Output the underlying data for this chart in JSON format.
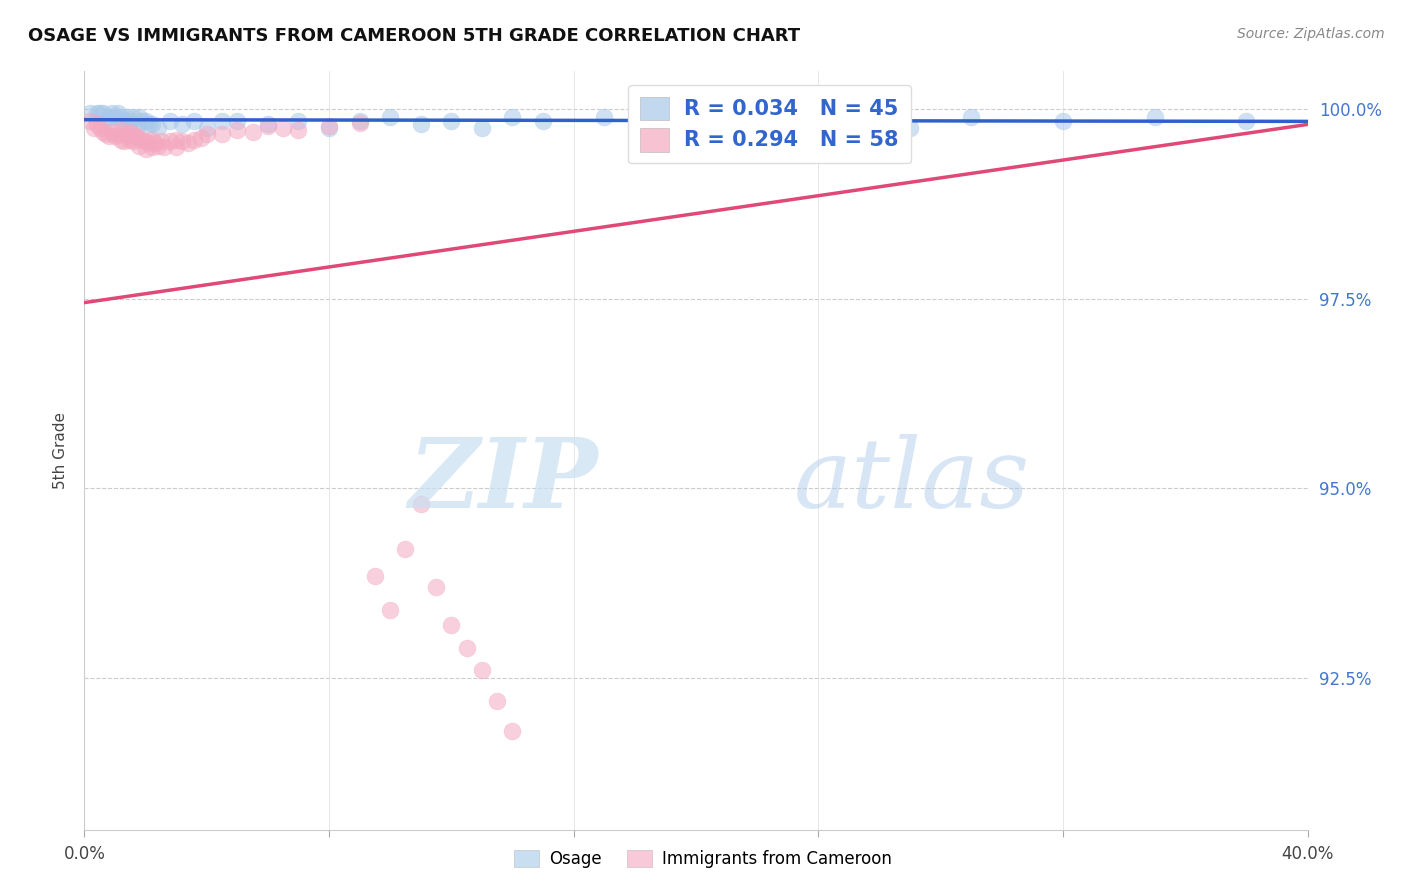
{
  "title": "OSAGE VS IMMIGRANTS FROM CAMEROON 5TH GRADE CORRELATION CHART",
  "source": "Source: ZipAtlas.com",
  "ylabel": "5th Grade",
  "xlim": [
    0.0,
    0.4
  ],
  "ylim": [
    0.905,
    1.005
  ],
  "ytick_labels": [
    "100.0%",
    "97.5%",
    "95.0%",
    "92.5%"
  ],
  "ytick_values": [
    1.0,
    0.975,
    0.95,
    0.925
  ],
  "xtick_values": [
    0.0,
    0.08,
    0.16,
    0.24,
    0.32,
    0.4
  ],
  "xtick_labels": [
    "0.0%",
    "",
    "",
    "",
    "",
    "40.0%"
  ],
  "blue_color": "#a8c8e8",
  "pink_color": "#f4a8c0",
  "trendline_blue_color": "#3060cc",
  "trendline_pink_color": "#e04878",
  "legend_R_blue": "R = 0.034",
  "legend_N_blue": "N = 45",
  "legend_R_pink": "R = 0.294",
  "legend_N_pink": "N = 58",
  "legend_text_color": "#3366cc",
  "watermark_zip_color": "#c8dff0",
  "watermark_atlas_color": "#b0ccec",
  "osage_points": [
    [
      0.002,
      0.9995
    ],
    [
      0.004,
      0.9995
    ],
    [
      0.005,
      0.9995
    ],
    [
      0.006,
      0.9995
    ],
    [
      0.007,
      0.9985
    ],
    [
      0.008,
      0.999
    ],
    [
      0.009,
      0.9995
    ],
    [
      0.01,
      0.999
    ],
    [
      0.011,
      0.9995
    ],
    [
      0.012,
      0.999
    ],
    [
      0.013,
      0.9985
    ],
    [
      0.014,
      0.999
    ],
    [
      0.015,
      0.9985
    ],
    [
      0.016,
      0.999
    ],
    [
      0.017,
      0.9975
    ],
    [
      0.018,
      0.999
    ],
    [
      0.019,
      0.9985
    ],
    [
      0.02,
      0.9985
    ],
    [
      0.021,
      0.998
    ],
    [
      0.022,
      0.998
    ],
    [
      0.024,
      0.9975
    ],
    [
      0.028,
      0.9985
    ],
    [
      0.032,
      0.998
    ],
    [
      0.036,
      0.9985
    ],
    [
      0.04,
      0.9975
    ],
    [
      0.045,
      0.9985
    ],
    [
      0.05,
      0.9985
    ],
    [
      0.06,
      0.998
    ],
    [
      0.07,
      0.9985
    ],
    [
      0.08,
      0.9975
    ],
    [
      0.09,
      0.9985
    ],
    [
      0.1,
      0.999
    ],
    [
      0.11,
      0.998
    ],
    [
      0.12,
      0.9985
    ],
    [
      0.13,
      0.9975
    ],
    [
      0.14,
      0.999
    ],
    [
      0.15,
      0.9985
    ],
    [
      0.17,
      0.999
    ],
    [
      0.2,
      0.9985
    ],
    [
      0.23,
      0.999
    ],
    [
      0.27,
      0.9975
    ],
    [
      0.29,
      0.999
    ],
    [
      0.32,
      0.9985
    ],
    [
      0.35,
      0.999
    ],
    [
      0.38,
      0.9985
    ]
  ],
  "cameroon_points": [
    [
      0.002,
      0.9985
    ],
    [
      0.003,
      0.9975
    ],
    [
      0.004,
      0.998
    ],
    [
      0.005,
      0.9975
    ],
    [
      0.006,
      0.997
    ],
    [
      0.007,
      0.9968
    ],
    [
      0.008,
      0.9965
    ],
    [
      0.009,
      0.997
    ],
    [
      0.01,
      0.9965
    ],
    [
      0.011,
      0.9968
    ],
    [
      0.012,
      0.9972
    ],
    [
      0.012,
      0.996
    ],
    [
      0.013,
      0.9968
    ],
    [
      0.013,
      0.9958
    ],
    [
      0.014,
      0.9965
    ],
    [
      0.015,
      0.997
    ],
    [
      0.015,
      0.996
    ],
    [
      0.016,
      0.9968
    ],
    [
      0.016,
      0.9958
    ],
    [
      0.017,
      0.9965
    ],
    [
      0.018,
      0.9962
    ],
    [
      0.018,
      0.9952
    ],
    [
      0.019,
      0.996
    ],
    [
      0.02,
      0.9958
    ],
    [
      0.02,
      0.9948
    ],
    [
      0.021,
      0.9955
    ],
    [
      0.022,
      0.996
    ],
    [
      0.022,
      0.995
    ],
    [
      0.023,
      0.9955
    ],
    [
      0.024,
      0.9952
    ],
    [
      0.025,
      0.9958
    ],
    [
      0.026,
      0.995
    ],
    [
      0.028,
      0.9958
    ],
    [
      0.03,
      0.996
    ],
    [
      0.03,
      0.995
    ],
    [
      0.032,
      0.9958
    ],
    [
      0.034,
      0.9955
    ],
    [
      0.036,
      0.996
    ],
    [
      0.038,
      0.9962
    ],
    [
      0.04,
      0.9968
    ],
    [
      0.045,
      0.9968
    ],
    [
      0.05,
      0.9972
    ],
    [
      0.055,
      0.997
    ],
    [
      0.06,
      0.9978
    ],
    [
      0.065,
      0.9975
    ],
    [
      0.07,
      0.9972
    ],
    [
      0.08,
      0.9978
    ],
    [
      0.09,
      0.9982
    ],
    [
      0.095,
      0.9385
    ],
    [
      0.1,
      0.934
    ],
    [
      0.105,
      0.942
    ],
    [
      0.11,
      0.948
    ],
    [
      0.115,
      0.937
    ],
    [
      0.12,
      0.932
    ],
    [
      0.125,
      0.929
    ],
    [
      0.13,
      0.926
    ],
    [
      0.135,
      0.922
    ],
    [
      0.14,
      0.918
    ]
  ]
}
